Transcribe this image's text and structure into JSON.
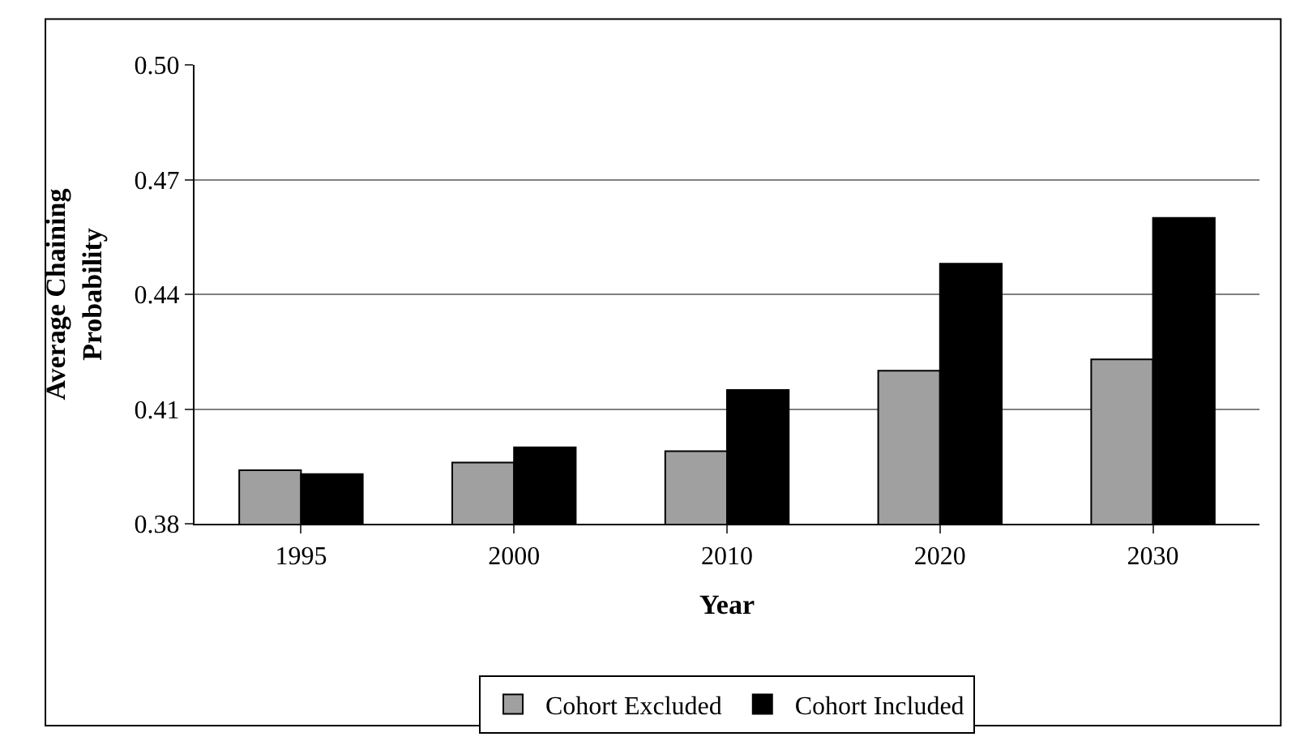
{
  "chart_data": {
    "type": "bar",
    "xlabel": "Year",
    "ylabel": "Average Chaining Probability",
    "categories": [
      "1995",
      "2000",
      "2010",
      "2020",
      "2030"
    ],
    "series": [
      {
        "name": "Cohort Excluded",
        "color": "#a0a0a0",
        "values": [
          0.394,
          0.396,
          0.399,
          0.42,
          0.423
        ]
      },
      {
        "name": "Cohort Included",
        "color": "#000000",
        "values": [
          0.393,
          0.4,
          0.415,
          0.448,
          0.46
        ]
      }
    ],
    "ylim": [
      0.38,
      0.5
    ],
    "yticks": [
      {
        "value": 0.38,
        "label": "0.38"
      },
      {
        "value": 0.41,
        "label": "0.41"
      },
      {
        "value": 0.44,
        "label": "0.44"
      },
      {
        "value": 0.47,
        "label": "0.47"
      },
      {
        "value": 0.5,
        "label": "0.50"
      }
    ],
    "grid": "y",
    "legend": "bottom"
  }
}
